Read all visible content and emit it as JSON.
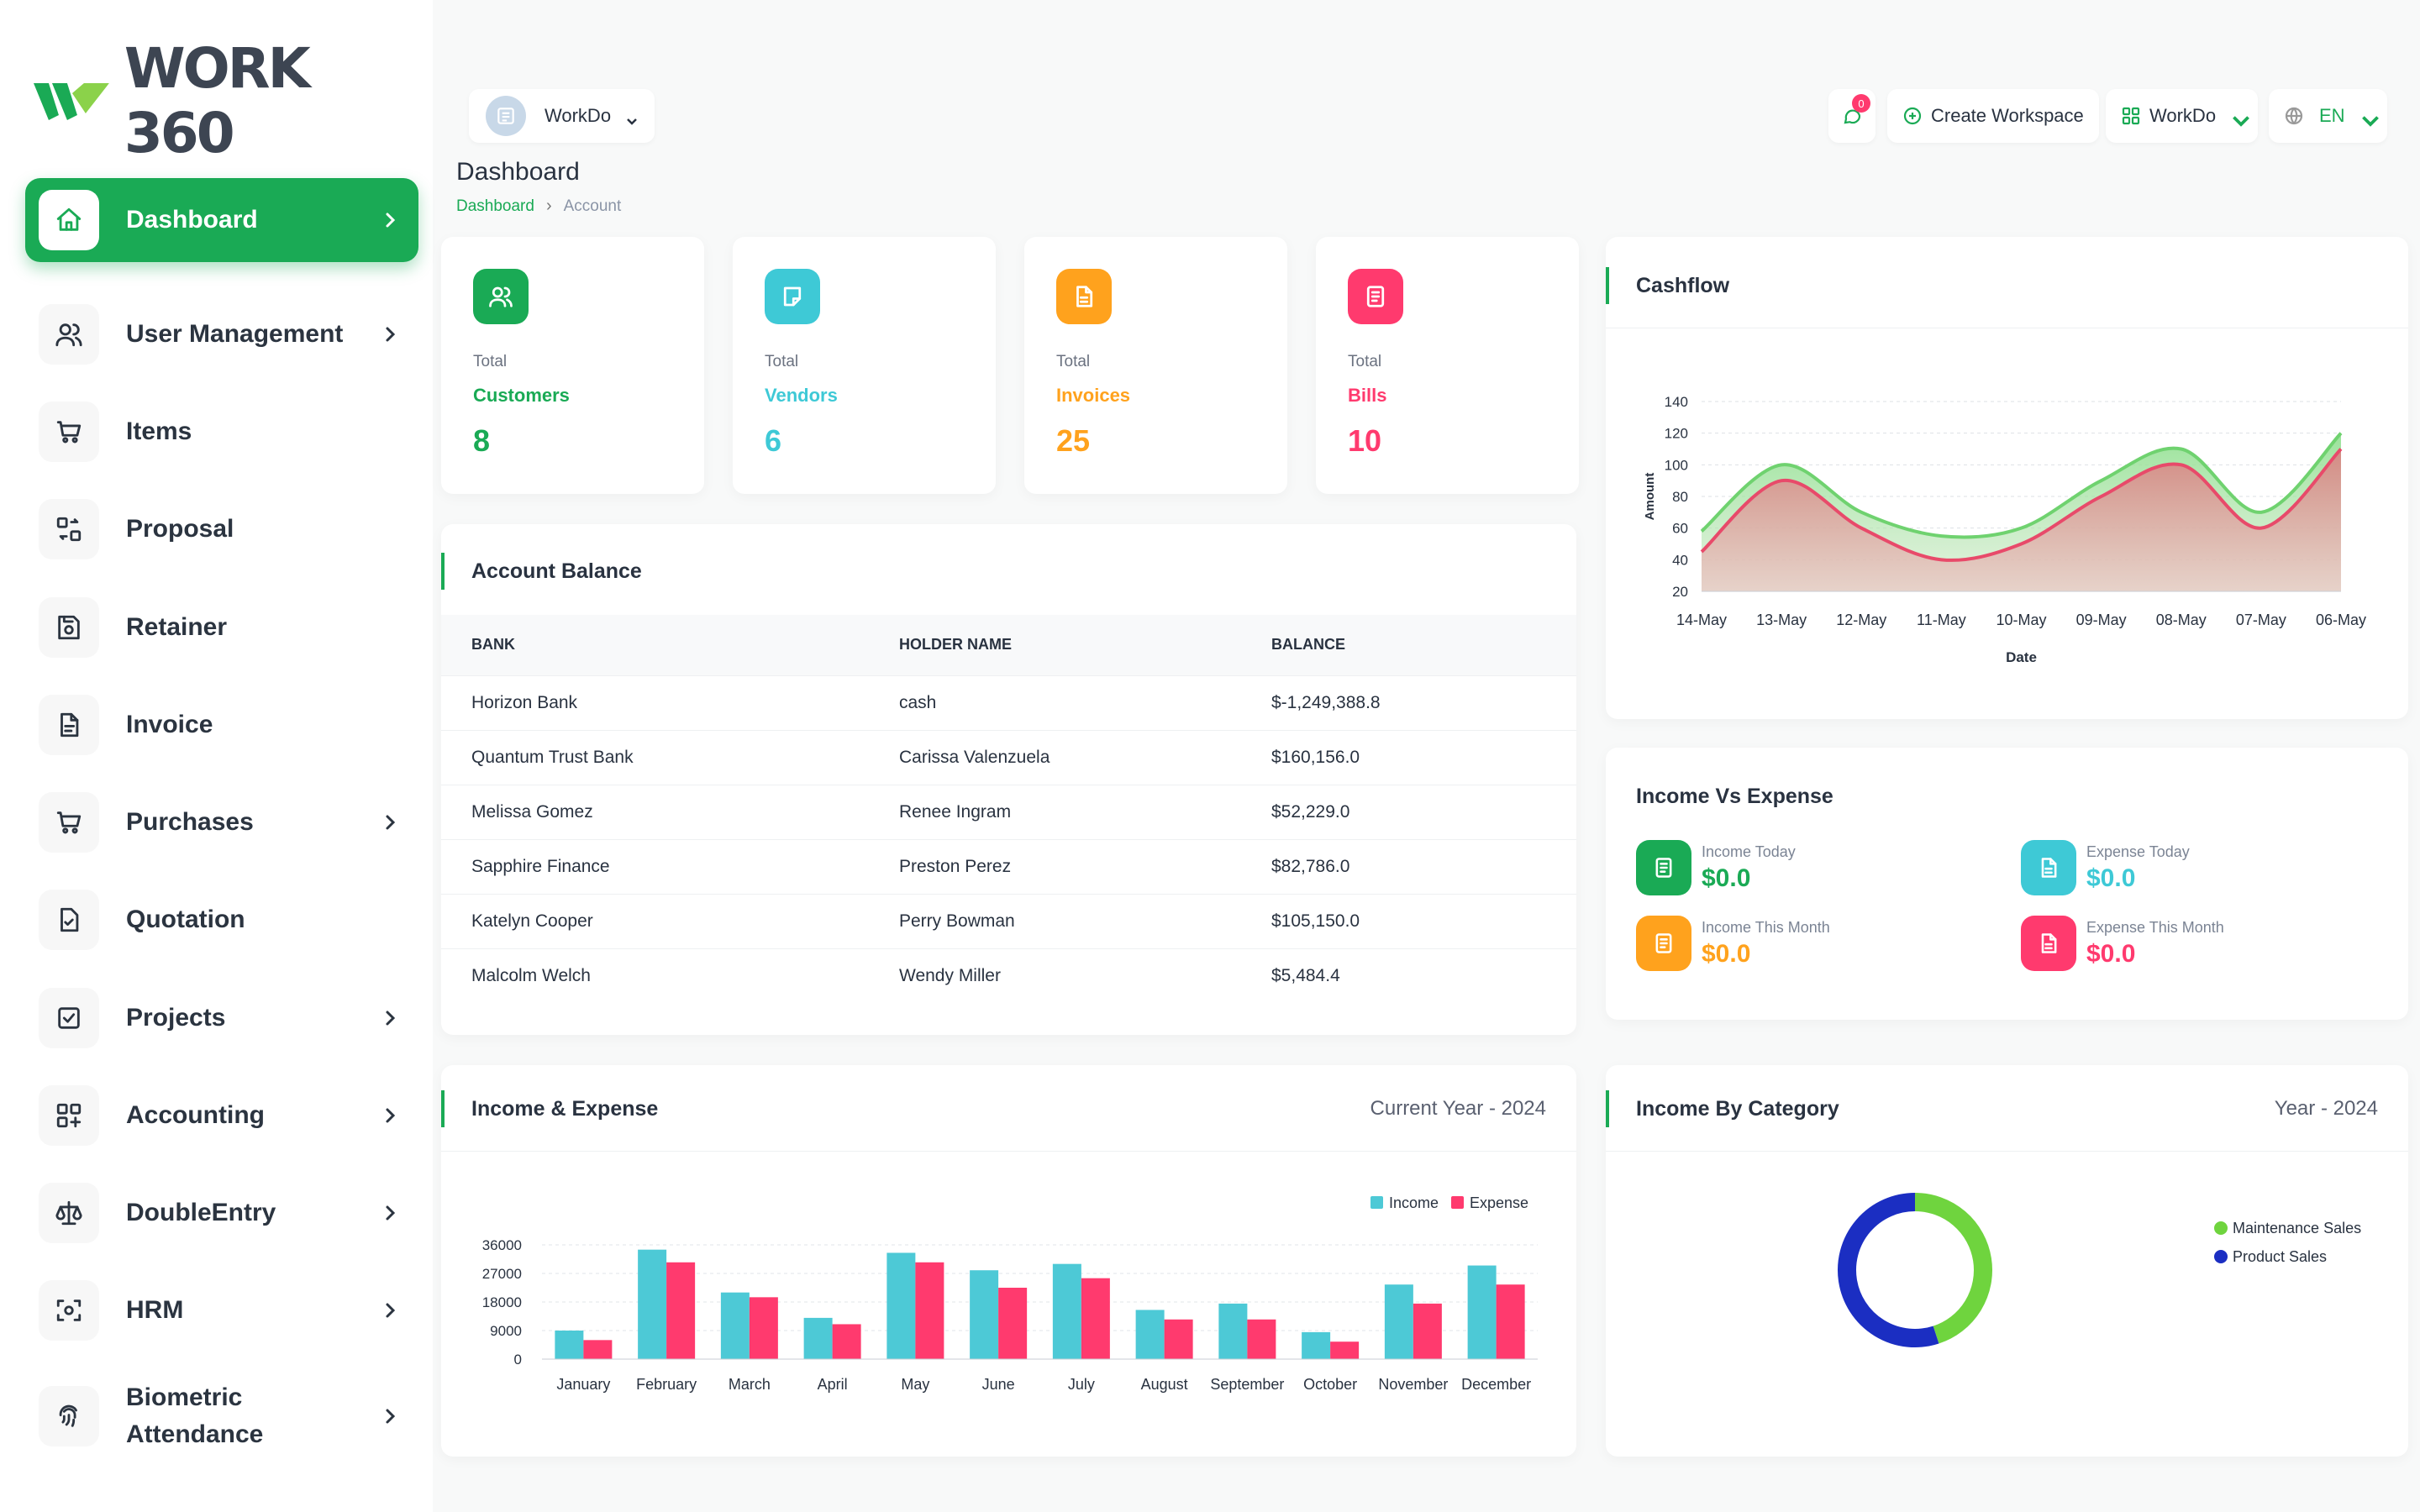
{
  "app": {
    "name": "WORK 360"
  },
  "sidebar": {
    "items": [
      {
        "label": "Dashboard",
        "icon": "home-icon",
        "has_children": true,
        "active": true
      },
      {
        "label": "User Management",
        "icon": "users-icon",
        "has_children": true
      },
      {
        "label": "Items",
        "icon": "cart-icon",
        "has_children": false
      },
      {
        "label": "Proposal",
        "icon": "swap-icon",
        "has_children": false
      },
      {
        "label": "Retainer",
        "icon": "save-icon",
        "has_children": false
      },
      {
        "label": "Invoice",
        "icon": "document-icon",
        "has_children": false
      },
      {
        "label": "Purchases",
        "icon": "cart-icon",
        "has_children": true
      },
      {
        "label": "Quotation",
        "icon": "file-check-icon",
        "has_children": false
      },
      {
        "label": "Projects",
        "icon": "checkbox-icon",
        "has_children": true
      },
      {
        "label": "Accounting",
        "icon": "apps-icon",
        "has_children": true
      },
      {
        "label": "DoubleEntry",
        "icon": "scale-icon",
        "has_children": true
      },
      {
        "label": "HRM",
        "icon": "focus-icon",
        "has_children": true
      },
      {
        "label": "Biometric Attendance",
        "icon": "fingerprint-icon",
        "has_children": true
      }
    ]
  },
  "topbar": {
    "workspace_selector": "WorkDo",
    "messages_badge": "0",
    "create_workspace": "Create Workspace",
    "workspace_menu": "WorkDo",
    "language": "EN"
  },
  "page": {
    "title": "Dashboard",
    "breadcrumb": [
      "Dashboard",
      "Account"
    ]
  },
  "stats": [
    {
      "total": "Total",
      "name": "Customers",
      "value": "8",
      "color": "#1aaa55",
      "icon": "users-icon"
    },
    {
      "total": "Total",
      "name": "Vendors",
      "value": "6",
      "color": "#3ec9d6",
      "icon": "note-icon"
    },
    {
      "total": "Total",
      "name": "Invoices",
      "value": "25",
      "color": "#ffa21d",
      "icon": "file-text-icon"
    },
    {
      "total": "Total",
      "name": "Bills",
      "value": "10",
      "color": "#ff3a6e",
      "icon": "receipt-icon"
    }
  ],
  "account_balance": {
    "title": "Account Balance",
    "columns": [
      "BANK",
      "HOLDER NAME",
      "BALANCE"
    ],
    "rows": [
      [
        "Horizon Bank",
        "cash",
        "$-1,249,388.8"
      ],
      [
        "Quantum Trust Bank",
        "Carissa Valenzuela",
        "$160,156.0"
      ],
      [
        "Melissa Gomez",
        "Renee Ingram",
        "$52,229.0"
      ],
      [
        "Sapphire Finance",
        "Preston Perez",
        "$82,786.0"
      ],
      [
        "Katelyn Cooper",
        "Perry Bowman",
        "$105,150.0"
      ],
      [
        "Malcolm Welch",
        "Wendy Miller",
        "$5,484.4"
      ]
    ]
  },
  "cashflow": {
    "title": "Cashflow",
    "chart_data": {
      "type": "area",
      "x": [
        "14-May",
        "13-May",
        "12-May",
        "11-May",
        "10-May",
        "09-May",
        "08-May",
        "07-May",
        "06-May"
      ],
      "series": [
        {
          "values": [
            58,
            100,
            70,
            55,
            60,
            90,
            110,
            70,
            120
          ],
          "color": "#6fd26f"
        },
        {
          "values": [
            45,
            90,
            60,
            40,
            50,
            80,
            100,
            60,
            110
          ],
          "color": "#e84a6a"
        }
      ],
      "xlabel": "Date",
      "ylabel": "Amount",
      "yticks": [
        20,
        40,
        60,
        80,
        100,
        120,
        140
      ],
      "ylim": [
        20,
        140
      ],
      "grid": true
    }
  },
  "income_vs_expense": {
    "title": "Income Vs Expense",
    "items": [
      {
        "label": "Income Today",
        "value": "$0.0",
        "color": "#1aaa55",
        "icon": "receipt-icon"
      },
      {
        "label": "Expense Today",
        "value": "$0.0",
        "color": "#3ec9d6",
        "icon": "file-text-icon"
      },
      {
        "label": "Income This Month",
        "value": "$0.0",
        "color": "#ffa21d",
        "icon": "receipt-icon"
      },
      {
        "label": "Expense This Month",
        "value": "$0.0",
        "color": "#ff3a6e",
        "icon": "file-text-icon"
      }
    ]
  },
  "income_expense": {
    "title": "Income & Expense",
    "subtitle": "Current Year - 2024",
    "chart_data": {
      "type": "bar",
      "categories": [
        "January",
        "February",
        "March",
        "April",
        "May",
        "June",
        "July",
        "August",
        "September",
        "October",
        "November",
        "December"
      ],
      "series": [
        {
          "name": "Income",
          "values": [
            9000,
            34500,
            21000,
            13000,
            33500,
            28000,
            30000,
            15500,
            17500,
            8500,
            23500,
            29500
          ],
          "color": "#4dc9d6"
        },
        {
          "name": "Expense",
          "values": [
            6000,
            30500,
            19500,
            11000,
            30500,
            22500,
            25500,
            12500,
            12500,
            5500,
            17500,
            23500
          ],
          "color": "#ff3a6e"
        }
      ],
      "yticks": [
        0,
        9000,
        18000,
        27000,
        36000
      ],
      "ylim": [
        0,
        36000
      ],
      "legend": "top-right"
    }
  },
  "income_by_category": {
    "title": "Income By Category",
    "subtitle": "Year - 2024",
    "chart_data": {
      "type": "pie",
      "labels": [
        "Maintenance Sales",
        "Product Sales"
      ],
      "values": [
        45,
        55
      ],
      "colors": [
        "#6fd43e",
        "#1b2ec2"
      ],
      "legend": "right"
    }
  }
}
